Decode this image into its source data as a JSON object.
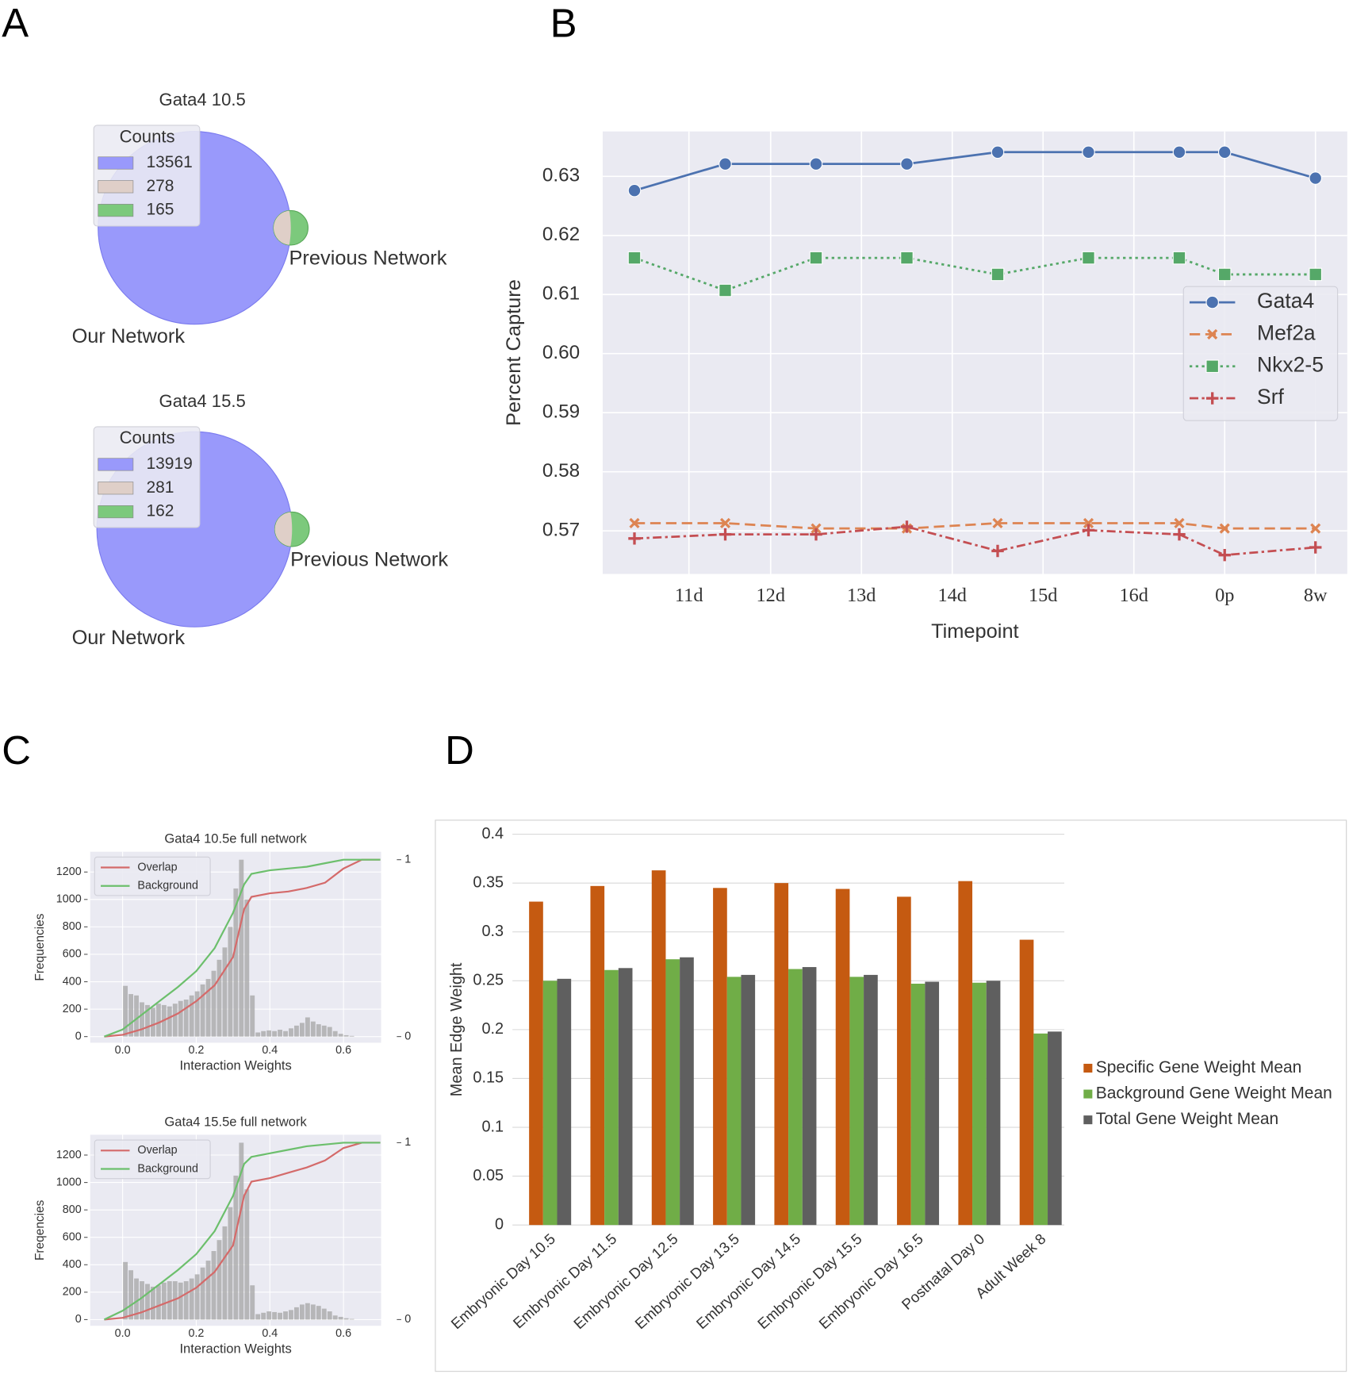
{
  "panel_labels": [
    "A",
    "B",
    "C",
    "D"
  ],
  "chart_data": [
    {
      "type": "venn",
      "title": "Gata4 10.5",
      "legend_title": "Counts",
      "sets": [
        "Our Network",
        "Previous Network"
      ],
      "values": [
        13561,
        278,
        165
      ],
      "colors": [
        "#9999fb",
        "#dfcfc8",
        "#7cc97c"
      ]
    },
    {
      "type": "venn",
      "title": "Gata4 15.5",
      "legend_title": "Counts",
      "sets": [
        "Our Network",
        "Previous Network"
      ],
      "values": [
        13919,
        281,
        162
      ],
      "colors": [
        "#9999fb",
        "#dfcfc8",
        "#7cc97c"
      ]
    },
    {
      "type": "line",
      "xlabel": "Timepoint",
      "ylabel": "Percent Capture",
      "x": [
        10.5,
        11.5,
        12.5,
        13.5,
        14.5,
        15.5,
        16.5,
        17.0,
        18.0
      ],
      "xlim": [
        10.15,
        18.35
      ],
      "xticks": [
        {
          "value": 11.1,
          "label": "11d"
        },
        {
          "value": 12.0,
          "label": "12d"
        },
        {
          "value": 13.0,
          "label": "13d"
        },
        {
          "value": 14.0,
          "label": "14d"
        },
        {
          "value": 15.0,
          "label": "15d"
        },
        {
          "value": 16.0,
          "label": "16d"
        },
        {
          "value": 17.0,
          "label": "0p"
        },
        {
          "value": 18.0,
          "label": "8w"
        }
      ],
      "ylim": [
        0.5627,
        0.6376
      ],
      "yticks": [
        0.57,
        0.58,
        0.59,
        {
          "value": 0.6,
          "label": "0.60"
        },
        0.61,
        0.62,
        0.63
      ],
      "grid": true,
      "legend": "center right",
      "series": [
        {
          "name": "Gata4",
          "color": "#4c72b0",
          "marker": "circle",
          "linestyle": "solid",
          "values": [
            0.6276,
            0.6321,
            0.6321,
            0.6321,
            0.6341,
            0.6341,
            0.6341,
            0.6341,
            0.6297
          ]
        },
        {
          "name": "Mef2a",
          "color": "#dd8452",
          "marker": "x",
          "linestyle": "dashed",
          "values": [
            0.5713,
            0.5713,
            0.5704,
            0.5704,
            0.5713,
            0.5713,
            0.5713,
            0.5704,
            0.5704
          ]
        },
        {
          "name": "Nkx2-5",
          "color": "#55a868",
          "marker": "square",
          "linestyle": "dotted",
          "values": [
            0.6162,
            0.6107,
            0.6162,
            0.6162,
            0.6134,
            0.6162,
            0.6162,
            0.6134,
            0.6134
          ]
        },
        {
          "name": "Srf",
          "color": "#c44e52",
          "marker": "plus",
          "linestyle": "dashdot",
          "values": [
            0.5687,
            0.5694,
            0.5694,
            0.5707,
            0.5666,
            0.5701,
            0.5694,
            0.5659,
            0.5672
          ]
        }
      ]
    },
    {
      "type": "histogram",
      "title": "Gata4 10.5e full network",
      "xlabel": "Interaction Weights",
      "ylabel": "Frequencies",
      "bins": [
        0,
        0.015,
        0.03,
        0.045,
        0.06,
        0.075,
        0.09,
        0.105,
        0.12,
        0.135,
        0.15,
        0.165,
        0.18,
        0.195,
        0.21,
        0.225,
        0.24,
        0.255,
        0.27,
        0.285,
        0.3,
        0.315,
        0.33,
        0.345,
        0.36,
        0.375,
        0.39,
        0.405,
        0.42,
        0.435,
        0.45,
        0.465,
        0.48,
        0.495,
        0.51,
        0.525,
        0.54,
        0.555,
        0.57,
        0.585,
        0.6,
        0.615,
        0.63,
        0.645
      ],
      "counts": [
        370,
        310,
        300,
        250,
        230,
        210,
        240,
        230,
        220,
        240,
        260,
        270,
        300,
        330,
        380,
        420,
        480,
        560,
        650,
        800,
        1080,
        1290,
        1000,
        300,
        30,
        40,
        45,
        40,
        50,
        40,
        60,
        80,
        100,
        140,
        110,
        90,
        80,
        70,
        40,
        20,
        10,
        5,
        0
      ],
      "bar_color": "#a9a9a9",
      "xlim": [
        -0.088,
        0.702
      ],
      "xticks": [
        {
          "value": 0,
          "label": "0.0"
        },
        0.2,
        0.4,
        0.6
      ],
      "ylim": [
        -45,
        1348
      ],
      "yticks": [
        0,
        200,
        400,
        600,
        800,
        1000,
        1200
      ],
      "y2lim": [
        -0.035,
        1.045
      ],
      "y2ticks": [
        0,
        1
      ],
      "grid": true,
      "legend": "upper left",
      "series": [
        {
          "name": "Overlap",
          "color": "#d46a6a",
          "axis": "y2",
          "x": [
            -0.05,
            0,
            0.05,
            0.1,
            0.15,
            0.2,
            0.25,
            0.3,
            0.33,
            0.35,
            0.4,
            0.45,
            0.5,
            0.55,
            0.6,
            0.65,
            0.7
          ],
          "values": [
            0,
            0.01,
            0.04,
            0.08,
            0.13,
            0.2,
            0.29,
            0.45,
            0.72,
            0.79,
            0.81,
            0.82,
            0.84,
            0.87,
            0.95,
            1,
            1
          ]
        },
        {
          "name": "Background",
          "color": "#6cbf6c",
          "axis": "y2",
          "x": [
            -0.05,
            0,
            0.05,
            0.1,
            0.15,
            0.2,
            0.25,
            0.3,
            0.33,
            0.35,
            0.4,
            0.45,
            0.5,
            0.55,
            0.6,
            0.65,
            0.7
          ],
          "values": [
            0,
            0.04,
            0.12,
            0.2,
            0.28,
            0.37,
            0.5,
            0.7,
            0.86,
            0.92,
            0.94,
            0.95,
            0.96,
            0.98,
            1,
            1,
            1
          ]
        }
      ]
    },
    {
      "type": "histogram",
      "title": "Gata4 15.5e full network",
      "xlabel": "Interaction Weights",
      "ylabel": "Freqencies",
      "bins": [
        0,
        0.015,
        0.03,
        0.045,
        0.06,
        0.075,
        0.09,
        0.105,
        0.12,
        0.135,
        0.15,
        0.165,
        0.18,
        0.195,
        0.21,
        0.225,
        0.24,
        0.255,
        0.27,
        0.285,
        0.3,
        0.315,
        0.33,
        0.345,
        0.36,
        0.375,
        0.39,
        0.405,
        0.42,
        0.435,
        0.45,
        0.465,
        0.48,
        0.495,
        0.51,
        0.525,
        0.54,
        0.555,
        0.57,
        0.585,
        0.6,
        0.615,
        0.63,
        0.645
      ],
      "counts": [
        420,
        360,
        300,
        280,
        260,
        240,
        250,
        270,
        280,
        280,
        270,
        280,
        300,
        330,
        380,
        430,
        500,
        580,
        680,
        820,
        1050,
        1290,
        950,
        250,
        40,
        50,
        60,
        55,
        50,
        60,
        70,
        90,
        110,
        120,
        110,
        100,
        80,
        60,
        30,
        20,
        10,
        5,
        0
      ],
      "bar_color": "#a9a9a9",
      "xlim": [
        -0.088,
        0.702
      ],
      "xticks": [
        {
          "value": 0,
          "label": "0.0"
        },
        0.2,
        0.4,
        0.6
      ],
      "ylim": [
        -45,
        1348
      ],
      "yticks": [
        0,
        200,
        400,
        600,
        800,
        1000,
        1200
      ],
      "y2lim": [
        -0.035,
        1.045
      ],
      "y2ticks": [
        0,
        1
      ],
      "grid": true,
      "legend": "upper left",
      "series": [
        {
          "name": "Overlap",
          "color": "#d46a6a",
          "axis": "y2",
          "x": [
            -0.05,
            0,
            0.05,
            0.1,
            0.15,
            0.2,
            0.25,
            0.3,
            0.33,
            0.35,
            0.4,
            0.45,
            0.5,
            0.55,
            0.6,
            0.65,
            0.7
          ],
          "values": [
            0,
            0.01,
            0.04,
            0.08,
            0.12,
            0.18,
            0.27,
            0.42,
            0.7,
            0.78,
            0.8,
            0.83,
            0.86,
            0.9,
            0.97,
            1,
            1
          ]
        },
        {
          "name": "Background",
          "color": "#6cbf6c",
          "axis": "y2",
          "x": [
            -0.05,
            0,
            0.05,
            0.1,
            0.15,
            0.2,
            0.25,
            0.3,
            0.33,
            0.35,
            0.4,
            0.45,
            0.5,
            0.55,
            0.6,
            0.65,
            0.7
          ],
          "values": [
            0,
            0.05,
            0.12,
            0.2,
            0.28,
            0.37,
            0.5,
            0.7,
            0.88,
            0.92,
            0.94,
            0.96,
            0.98,
            0.99,
            1,
            1,
            1
          ]
        }
      ]
    },
    {
      "type": "bar",
      "ylabel": "Mean Edge Weight",
      "categories": [
        "Embryonic Day 10.5",
        "Embryonic Day 11.5",
        "Embryonic Day 12.5",
        "Embryonic Day 13.5",
        "Embryonic Day 14.5",
        "Embryonic Day 15.5",
        "Embryonic Day 16.5",
        "Postnatal Day 0",
        "Adult Week 8"
      ],
      "ylim": [
        0,
        0.4
      ],
      "yticks": [
        0,
        0.05,
        0.1,
        0.15,
        0.2,
        0.25,
        0.3,
        0.35,
        0.4
      ],
      "grid": true,
      "legend": "right",
      "series": [
        {
          "name": "Specific Gene Weight Mean",
          "color": "#c55a11",
          "values": [
            0.331,
            0.347,
            0.363,
            0.345,
            0.35,
            0.344,
            0.336,
            0.352,
            0.292
          ]
        },
        {
          "name": "Background Gene Weight Mean",
          "color": "#70ad47",
          "values": [
            0.25,
            0.261,
            0.272,
            0.254,
            0.262,
            0.254,
            0.247,
            0.248,
            0.196
          ]
        },
        {
          "name": "Total Gene Weight Mean",
          "color": "#5f5f5f",
          "values": [
            0.252,
            0.263,
            0.274,
            0.256,
            0.264,
            0.256,
            0.249,
            0.25,
            0.198
          ]
        }
      ]
    }
  ]
}
